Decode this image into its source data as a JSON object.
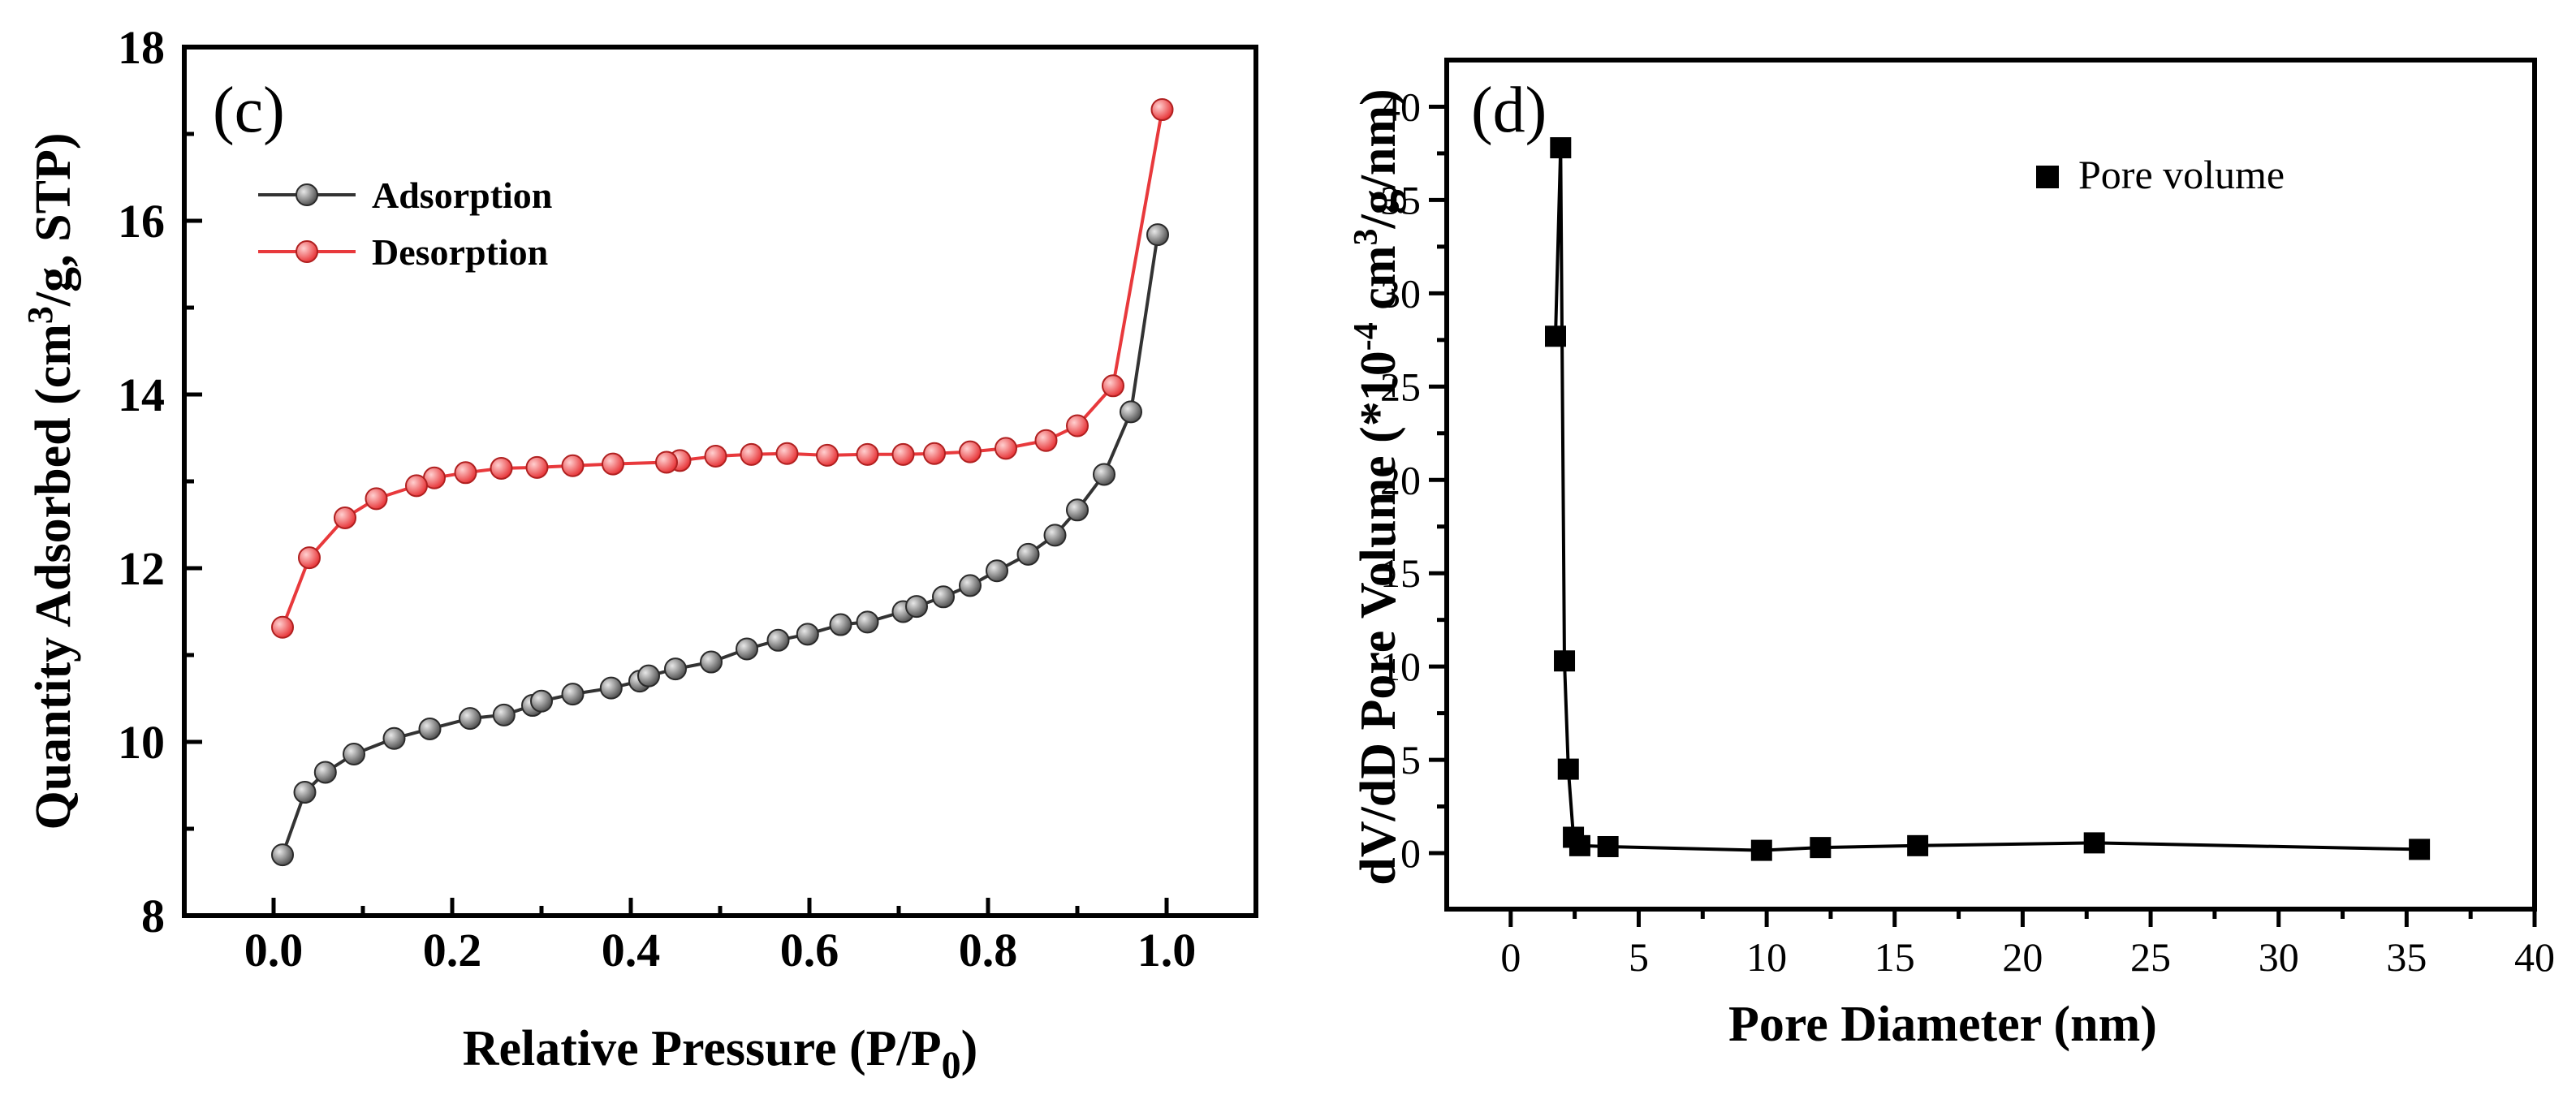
{
  "chart_data": [
    {
      "type": "line",
      "panel_label": "(c)",
      "xlabel": "Relative Pressure (P/P",
      "xlabel_sub": "0",
      "xlabel_end": ")",
      "ylabel": "Quantity Adsorbed (cm",
      "ylabel_sup": "3",
      "ylabel_end": "/g,  STP)",
      "xlim": [
        -0.1,
        1.1
      ],
      "ylim": [
        8,
        18
      ],
      "xticks": [
        "0.0",
        "0.2",
        "0.4",
        "0.6",
        "0.8",
        "1.0"
      ],
      "yticks": [
        "8",
        "10",
        "12",
        "14",
        "16",
        "18"
      ],
      "legend": "top-left",
      "series": [
        {
          "name": "Adsorption",
          "color": "#555555",
          "x": [
            0.01,
            0.035,
            0.058,
            0.09,
            0.135,
            0.175,
            0.22,
            0.258,
            0.29,
            0.3,
            0.335,
            0.378,
            0.41,
            0.42,
            0.45,
            0.49,
            0.53,
            0.565,
            0.598,
            0.635,
            0.665,
            0.705,
            0.72,
            0.75,
            0.78,
            0.81,
            0.845,
            0.875,
            0.9,
            0.93,
            0.96,
            0.99
          ],
          "y": [
            8.7,
            9.42,
            9.65,
            9.86,
            10.04,
            10.15,
            10.27,
            10.31,
            10.42,
            10.47,
            10.55,
            10.62,
            10.7,
            10.76,
            10.84,
            10.92,
            11.07,
            11.17,
            11.24,
            11.35,
            11.38,
            11.5,
            11.56,
            11.67,
            11.8,
            11.97,
            12.16,
            12.38,
            12.67,
            13.08,
            13.8,
            15.84
          ]
        },
        {
          "name": "Desorption",
          "color": "#e8393c",
          "x": [
            0.995,
            0.94,
            0.9,
            0.865,
            0.82,
            0.78,
            0.74,
            0.705,
            0.665,
            0.62,
            0.575,
            0.535,
            0.495,
            0.455,
            0.44,
            0.38,
            0.335,
            0.295,
            0.255,
            0.215,
            0.18,
            0.16,
            0.115,
            0.08,
            0.04,
            0.01
          ],
          "y": [
            17.28,
            14.1,
            13.64,
            13.47,
            13.38,
            13.34,
            13.32,
            13.31,
            13.31,
            13.3,
            13.32,
            13.31,
            13.29,
            13.24,
            13.22,
            13.2,
            13.18,
            13.16,
            13.15,
            13.1,
            13.04,
            12.95,
            12.8,
            12.58,
            12.12,
            11.32
          ]
        }
      ]
    },
    {
      "type": "line",
      "panel_label": "(d)",
      "xlabel": "Pore Diameter (nm)",
      "ylabel": "dV/dD Pore Volume (*10",
      "ylabel_sup": "-4",
      "ylabel_mid": " cm",
      "ylabel_sup2": "3",
      "ylabel_end": "/g/nm)",
      "xlim": [
        -2.5,
        40
      ],
      "ylim": [
        -3,
        42.5
      ],
      "xticks": [
        "0",
        "5",
        "10",
        "15",
        "20",
        "25",
        "30",
        "35",
        "40"
      ],
      "yticks": [
        "0",
        "5",
        "10",
        "15",
        "20",
        "25",
        "30",
        "35",
        "40"
      ],
      "legend": "top-right",
      "series": [
        {
          "name": "Pore volume",
          "color": "#000000",
          "x": [
            1.75,
            1.95,
            2.1,
            2.25,
            2.45,
            2.7,
            3.8,
            9.8,
            12.1,
            15.9,
            22.8,
            35.5
          ],
          "y": [
            27.7,
            37.8,
            10.3,
            4.5,
            0.85,
            0.4,
            0.35,
            0.15,
            0.3,
            0.4,
            0.55,
            0.2
          ]
        }
      ]
    }
  ]
}
